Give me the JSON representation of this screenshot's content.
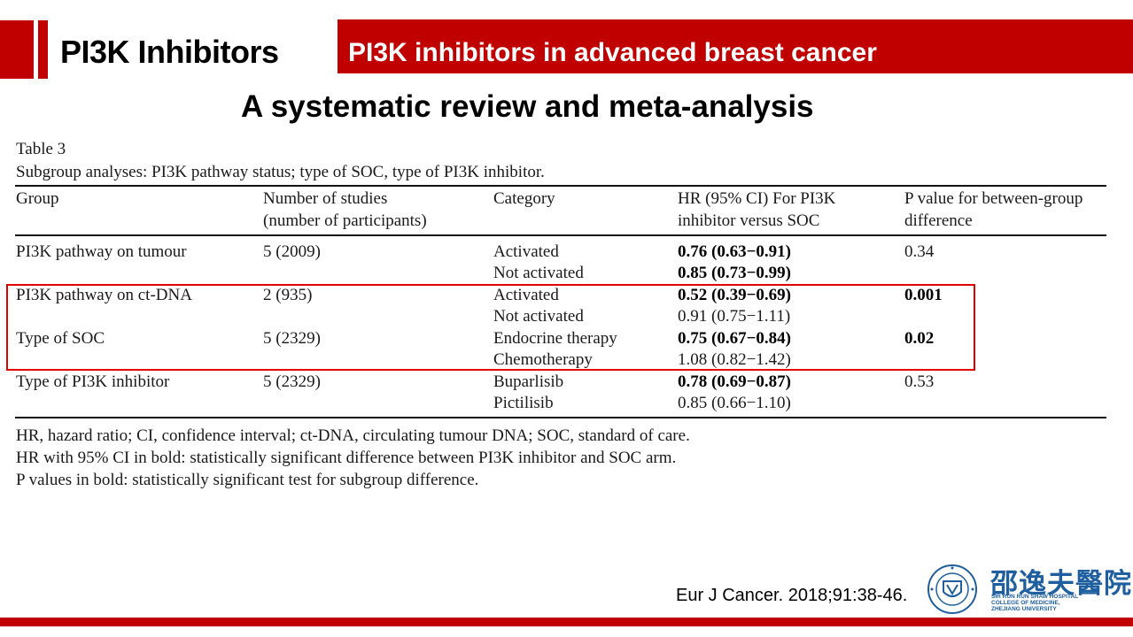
{
  "header": {
    "section_title": "PI3K Inhibitors",
    "band_title": "PI3K inhibitors in advanced breast cancer",
    "subtitle": "A systematic review and meta-analysis"
  },
  "table": {
    "caption": "Table 3",
    "subcaption": "Subgroup analyses: PI3K pathway status; type of SOC, type of PI3K inhibitor.",
    "headers": {
      "group": "Group",
      "num_line1": "Number of studies",
      "num_line2": "(number of participants)",
      "category": "Category",
      "hr_line1": "HR (95% CI) For PI3K",
      "hr_line2": "inhibitor versus SOC",
      "p_line1": "P value for between-group",
      "p_line2": "difference"
    },
    "rows": [
      {
        "group": "PI3K pathway on tumour",
        "num": "5 (2009)",
        "cat1": "Activated",
        "hr1": "0.76 (0.63−0.91)",
        "cat2": "Not activated",
        "hr2": "0.85 (0.73−0.99)",
        "p": "0.34"
      },
      {
        "group": "PI3K pathway on ct-DNA",
        "num": "2 (935)",
        "cat1": "Activated",
        "hr1": "0.52 (0.39−0.69)",
        "cat2": "Not activated",
        "hr2": "0.91 (0.75−1.11)",
        "p": "0.001"
      },
      {
        "group": "Type of SOC",
        "num": "5 (2329)",
        "cat1": "Endocrine therapy",
        "hr1": "0.75 (0.67−0.84)",
        "cat2": "Chemotherapy",
        "hr2": "1.08 (0.82−1.42)",
        "p": "0.02"
      },
      {
        "group": "Type of PI3K inhibitor",
        "num": "5 (2329)",
        "cat1": "Buparlisib",
        "hr1": "0.78 (0.69−0.87)",
        "cat2": "Pictilisib",
        "hr2": "0.85 (0.66−1.10)",
        "p": "0.53"
      }
    ],
    "footnotes": [
      "HR, hazard ratio; CI, confidence interval; ct-DNA, circulating tumour DNA; SOC, standard of care.",
      "HR with 95% CI in bold: statistically significant difference between PI3K inhibitor and SOC arm.",
      "P values in bold: statistically significant test for subgroup difference."
    ]
  },
  "citation": "Eur J Cancer. 2018;91:38-46.",
  "logo": {
    "name_cn": "邵逸夫醫院",
    "name_en_line1": "SIR RUN RUN SHAW HOSPITAL",
    "name_en_line2": "COLLEGE OF MEDICINE,",
    "name_en_line3": "ZHEJIANG UNIVERSITY"
  },
  "colors": {
    "accent": "#c00000",
    "highlight_border": "#e00000",
    "logo_blue": "#1f5fa0"
  }
}
